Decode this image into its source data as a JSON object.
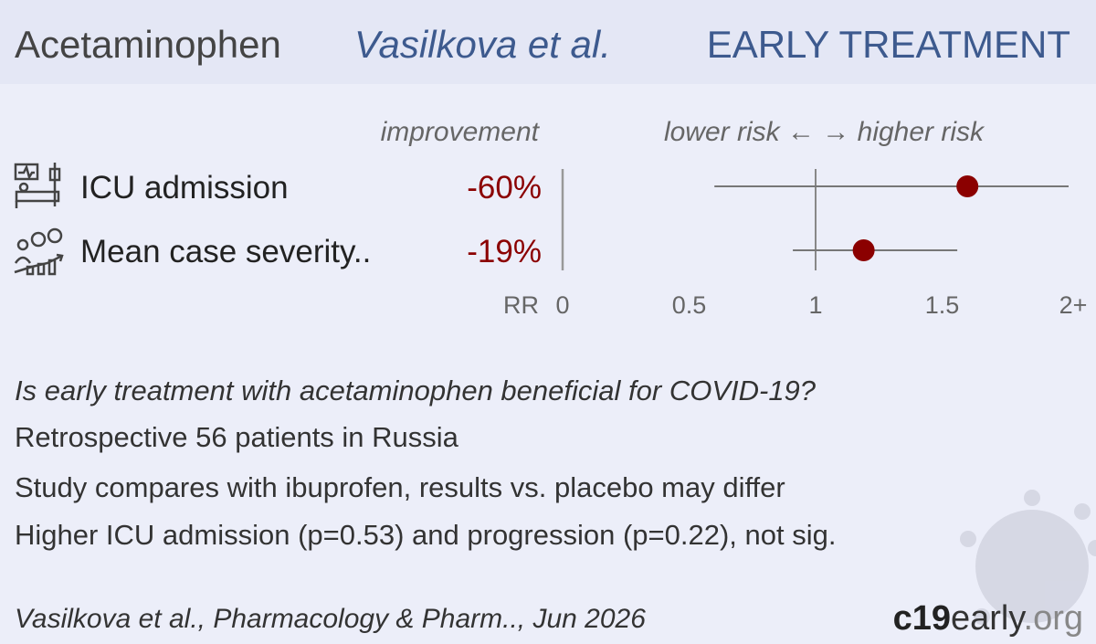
{
  "header": {
    "title": "Acetaminophen",
    "authors": "Vasilkova et al.",
    "stage": "EARLY TREATMENT"
  },
  "chart_data": {
    "type": "forest",
    "improvement_header": "improvement",
    "risk_header": "lower risk ←  → higher risk",
    "xlabel": "RR",
    "categories": [
      "ICU admission",
      "Mean case severity.."
    ],
    "improvement": [
      "-60%",
      "-19%"
    ],
    "values": [
      1.6,
      1.19
    ],
    "ci_low": [
      0.6,
      0.91
    ],
    "ci_high": [
      2,
      1.56
    ],
    "xlim": [
      0,
      2
    ],
    "xticks": [
      0,
      0.5,
      1,
      1.5,
      {
        "value": 2,
        "label": "2+"
      }
    ],
    "reference": 1,
    "color": "#8b0000"
  },
  "summary": {
    "question": "Is early treatment with acetaminophen beneficial for COVID-19?",
    "lines": [
      "Retrospective 56 patients in Russia",
      "Study compares with ibuprofen, results vs. placebo may differ",
      "Higher ICU admission (p=0.53) and progression (p=0.22), not sig."
    ]
  },
  "footer": {
    "citation": "Vasilkova et al., Pharmacology & Pharm.., Jun 2026",
    "brand": [
      "c19",
      "early",
      ".org"
    ]
  }
}
